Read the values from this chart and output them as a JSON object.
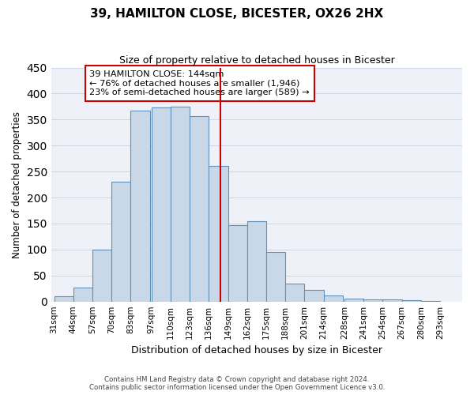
{
  "title": "39, HAMILTON CLOSE, BICESTER, OX26 2HX",
  "subtitle": "Size of property relative to detached houses in Bicester",
  "xlabel": "Distribution of detached houses by size in Bicester",
  "ylabel": "Number of detached properties",
  "bar_labels": [
    "31sqm",
    "44sqm",
    "57sqm",
    "70sqm",
    "83sqm",
    "97sqm",
    "110sqm",
    "123sqm",
    "136sqm",
    "149sqm",
    "162sqm",
    "175sqm",
    "188sqm",
    "201sqm",
    "214sqm",
    "228sqm",
    "241sqm",
    "254sqm",
    "267sqm",
    "280sqm",
    "293sqm"
  ],
  "bar_values": [
    10,
    27,
    100,
    230,
    367,
    373,
    375,
    357,
    261,
    147,
    155,
    95,
    34,
    22,
    11,
    6,
    4,
    4,
    2,
    1
  ],
  "bar_color": "#c8d8e8",
  "bar_edge_color": "#6090b8",
  "vline_x": 144,
  "vline_color": "#cc0000",
  "annotation_title": "39 HAMILTON CLOSE: 144sqm",
  "annotation_line1": "← 76% of detached houses are smaller (1,946)",
  "annotation_line2": "23% of semi-detached houses are larger (589) →",
  "annotation_box_color": "#cc0000",
  "annotation_bg": "#ffffff",
  "ylim": [
    0,
    450
  ],
  "yticks": [
    0,
    50,
    100,
    150,
    200,
    250,
    300,
    350,
    400,
    450
  ],
  "grid_color": "#d0d8e8",
  "bg_color": "#eef2f8",
  "footnote1": "Contains HM Land Registry data © Crown copyright and database right 2024.",
  "footnote2": "Contains public sector information licensed under the Open Government Licence v3.0.",
  "bin_edges": [
    31,
    44,
    57,
    70,
    83,
    97,
    110,
    123,
    136,
    149,
    162,
    175,
    188,
    201,
    214,
    228,
    241,
    254,
    267,
    280,
    293
  ]
}
